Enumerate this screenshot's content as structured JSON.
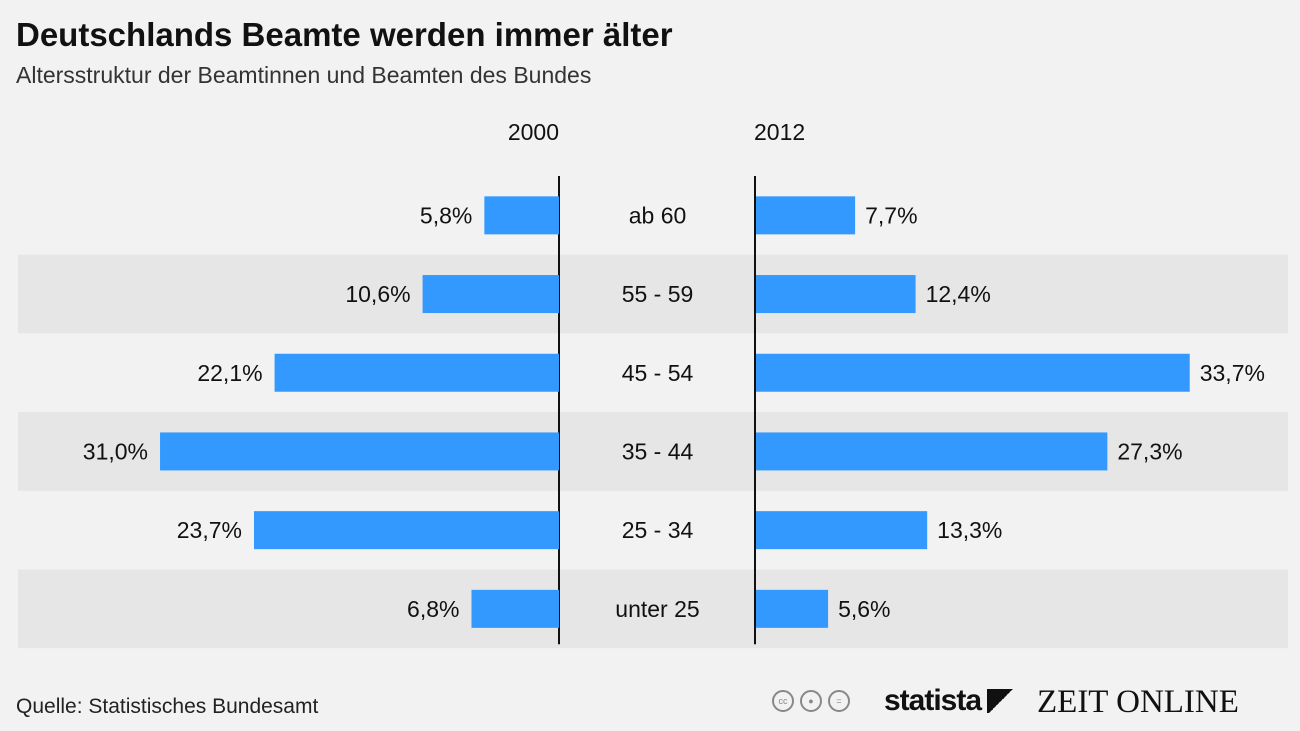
{
  "title": "Deutschlands Beamte werden immer älter",
  "subtitle": "Altersstruktur der Beamtinnen und Beamten des Bundes",
  "source": "Quelle: Statistisches Bundesamt",
  "logos": {
    "statista": "statista",
    "zeit": "ZEIT ONLINE",
    "cc": "cc"
  },
  "colors": {
    "bar": "#3399ff",
    "band": "#e6e6e6",
    "background": "#f2f2f2"
  },
  "chart_data": {
    "type": "bar",
    "orientation": "horizontal-butterfly",
    "categories": [
      "ab 60",
      "55 - 59",
      "45 - 54",
      "35 - 44",
      "25 - 34",
      "unter 25"
    ],
    "series": [
      {
        "name": "2000",
        "values": [
          5.8,
          10.6,
          22.1,
          31.0,
          23.7,
          6.8
        ],
        "labels": [
          "5,8%",
          "10,6%",
          "22,1%",
          "31,0%",
          "23,7%",
          "6,8%"
        ]
      },
      {
        "name": "2012",
        "values": [
          7.7,
          12.4,
          33.7,
          27.3,
          13.3,
          5.6
        ],
        "labels": [
          "7,7%",
          "12,4%",
          "33,7%",
          "27,3%",
          "13,3%",
          "5,6%"
        ]
      }
    ],
    "unit": "%"
  }
}
